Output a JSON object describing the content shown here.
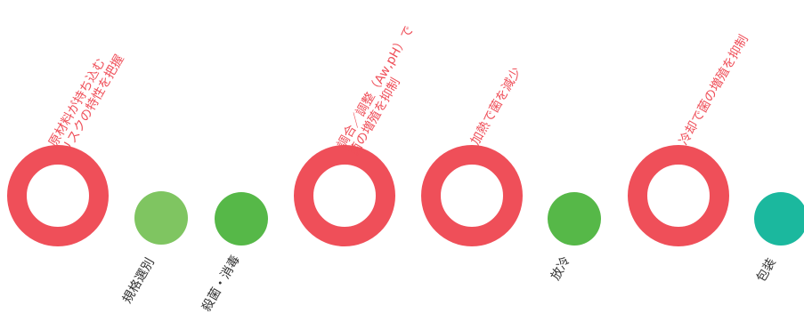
{
  "colors": {
    "ccp_ring": "#ef4f59",
    "step_light_green": "#7fc561",
    "step_green": "#56b848",
    "step_teal": "#1bb89e"
  },
  "steps": [
    {
      "label": "規格選別",
      "kind": "dot",
      "color": "#7fc561"
    },
    {
      "label": "殺菌・消毒",
      "kind": "dot",
      "color": "#56b848"
    },
    {
      "label": "放冷",
      "kind": "dot",
      "color": "#56b848"
    },
    {
      "label": "包装",
      "kind": "dot",
      "color": "#1bb89e"
    }
  ],
  "hazards": [
    {
      "line1": "原材料が持ち込む",
      "line2": "リスクの特性を把握"
    },
    {
      "line1": "調合／調整（Aw,pH）で",
      "line2": "菌の増殖を抑制"
    },
    {
      "line1": "加熱で菌を減少",
      "line2": ""
    },
    {
      "line1": "冷却で菌の増殖を抑制",
      "line2": ""
    }
  ]
}
